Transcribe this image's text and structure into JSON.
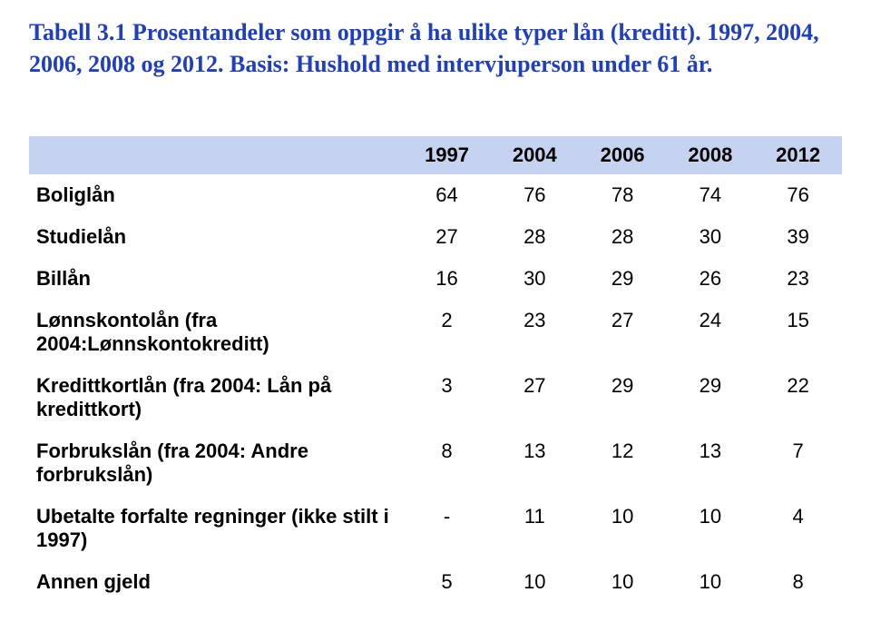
{
  "title_line1": "Tabell 3.1 Prosentandeler som oppgir å ha ulike typer lån (kreditt). 1997, 2004,",
  "title_line2": "2006, 2008 og 2012. Basis: Hushold med intervjuperson under 61 år.",
  "table": {
    "header_blank": "",
    "years": [
      "1997",
      "2004",
      "2006",
      "2008",
      "2012"
    ],
    "rows": [
      {
        "label": "Boliglån",
        "v": [
          "64",
          "76",
          "78",
          "74",
          "76"
        ]
      },
      {
        "label": "Studielån",
        "v": [
          "27",
          "28",
          "28",
          "30",
          "39"
        ]
      },
      {
        "label": "Billån",
        "v": [
          "16",
          "30",
          "29",
          "26",
          "23"
        ]
      },
      {
        "label": "Lønnskontolån (fra 2004:Lønnskontokreditt)",
        "v": [
          "2",
          "23",
          "27",
          "24",
          "15"
        ]
      },
      {
        "label": "Kredittkortlån (fra 2004: Lån på kredittkort)",
        "v": [
          "3",
          "27",
          "29",
          "29",
          "22"
        ]
      },
      {
        "label": "Forbrukslån (fra 2004: Andre forbrukslån)",
        "v": [
          "8",
          "13",
          "12",
          "13",
          "7"
        ]
      },
      {
        "label": "Ubetalte forfalte regninger (ikke stilt i 1997)",
        "v": [
          "-",
          "11",
          "10",
          "10",
          "4"
        ]
      },
      {
        "label": "Annen gjeld",
        "v": [
          "5",
          "10",
          "10",
          "10",
          "8"
        ]
      }
    ]
  },
  "colors": {
    "title": "#1f3fbf",
    "header_bg": "#c6d3f0",
    "text": "#000000",
    "background": "#ffffff"
  }
}
